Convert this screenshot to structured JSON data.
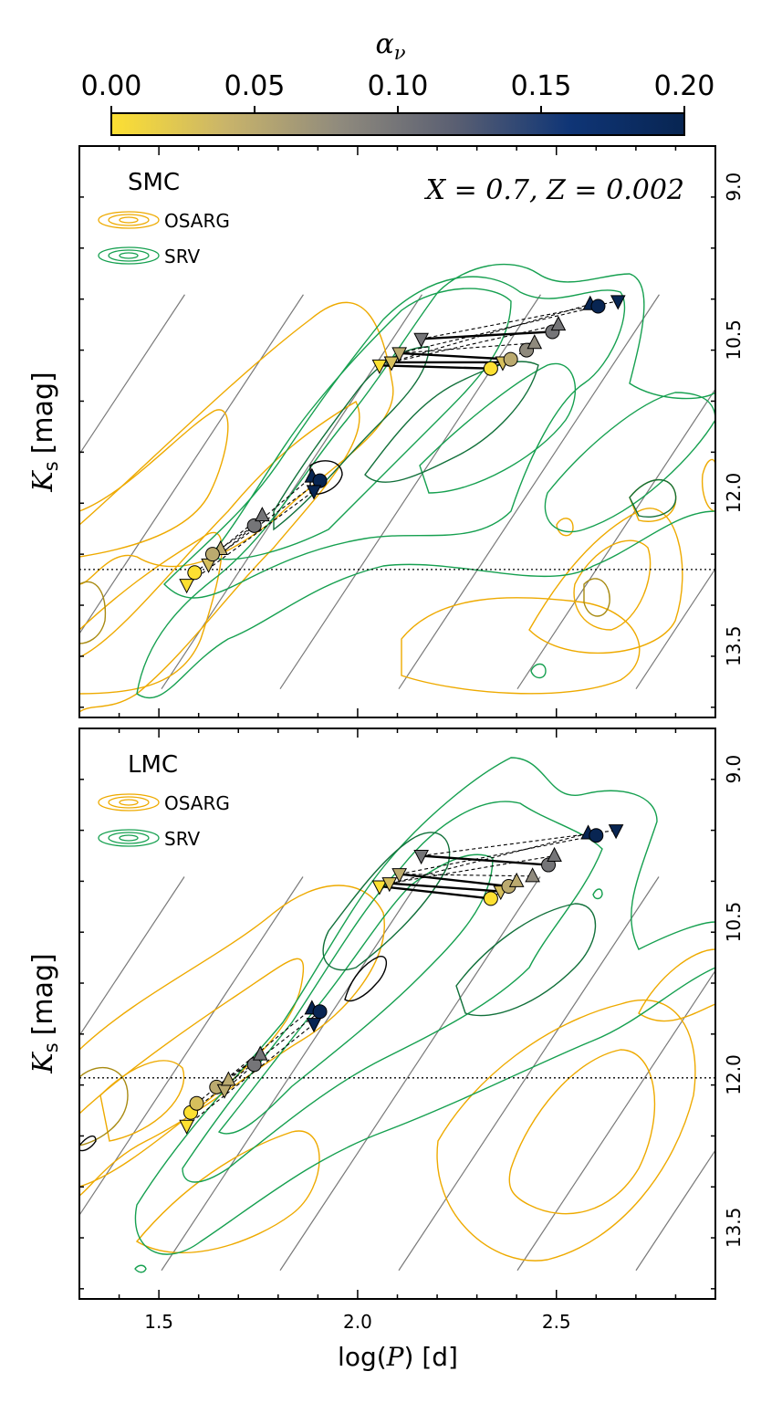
{
  "colorbar": {
    "label": "αν",
    "label_main": "α",
    "label_sub": "ν",
    "ticks": [
      "0.00",
      "0.05",
      "0.10",
      "0.15",
      "0.20"
    ],
    "range": [
      0.0,
      0.2
    ],
    "colors": [
      "#fde032",
      "#c9b46a",
      "#8f8a7d",
      "#5a5f72",
      "#0f3576",
      "#082552"
    ]
  },
  "colors": {
    "osarg": "#eeaa00",
    "osarg_dark": "#a88a10",
    "srv": "#16a050",
    "srv_dark": "#11703a",
    "grid_line": "#7a7a7a"
  },
  "chart_data": [
    {
      "type": "scatter",
      "panel": "top",
      "galaxy_label": "SMC",
      "annotation": "X = 0.7, Z = 0.002",
      "legend": [
        {
          "name": "OSARG",
          "color": "#eeaa00"
        },
        {
          "name": "SRV",
          "color": "#16a050"
        }
      ],
      "legend_placement": "top-left",
      "ylabel_main": "K",
      "ylabel_sub": "s",
      "ylabel_unit": "[mag]",
      "xlim": [
        1.3,
        2.9
      ],
      "ylim": [
        14.2,
        8.6
      ],
      "right_ticks": [
        "9.0",
        "10.5",
        "12.0",
        "13.5"
      ],
      "right_tick_values": [
        9.0,
        10.5,
        12.0,
        13.5
      ],
      "dotted_hline": 12.75,
      "track_groups": [
        {
          "points": [
            {
              "x": 1.57,
              "y": 12.9,
              "alpha": 0.0,
              "m": "v"
            },
            {
              "x": 1.59,
              "y": 12.78,
              "alpha": 0.0,
              "m": "o"
            },
            {
              "x": 1.625,
              "y": 12.7,
              "alpha": 0.03,
              "m": "v"
            },
            {
              "x": 1.655,
              "y": 12.55,
              "alpha": 0.05,
              "m": "^"
            },
            {
              "x": 1.635,
              "y": 12.6,
              "alpha": 0.05,
              "m": "o"
            },
            {
              "x": 1.74,
              "y": 12.32,
              "alpha": 0.1,
              "m": "o"
            },
            {
              "x": 1.76,
              "y": 12.22,
              "alpha": 0.1,
              "m": "^"
            },
            {
              "x": 1.885,
              "y": 11.84,
              "alpha": 0.2,
              "m": "^"
            },
            {
              "x": 1.905,
              "y": 11.88,
              "alpha": 0.2,
              "m": "o"
            },
            {
              "x": 1.89,
              "y": 11.98,
              "alpha": 0.2,
              "m": "v"
            }
          ],
          "segments": [
            [
              0,
              9,
              "dash"
            ],
            [
              1,
              8,
              "dash"
            ],
            [
              2,
              7,
              "dash"
            ],
            [
              3,
              6,
              "dash"
            ],
            [
              4,
              5,
              "dash"
            ]
          ]
        },
        {
          "points": [
            {
              "x": 2.055,
              "y": 10.75,
              "alpha": 0.0,
              "m": "v"
            },
            {
              "x": 2.085,
              "y": 10.72,
              "alpha": 0.03,
              "m": "v"
            },
            {
              "x": 2.105,
              "y": 10.63,
              "alpha": 0.05,
              "m": "v"
            },
            {
              "x": 2.16,
              "y": 10.49,
              "alpha": 0.1,
              "m": "v"
            },
            {
              "x": 2.335,
              "y": 10.78,
              "alpha": 0.0,
              "m": "o"
            },
            {
              "x": 2.365,
              "y": 10.72,
              "alpha": 0.03,
              "m": "v"
            },
            {
              "x": 2.385,
              "y": 10.69,
              "alpha": 0.05,
              "m": "o"
            },
            {
              "x": 2.425,
              "y": 10.6,
              "alpha": 0.08,
              "m": "o"
            },
            {
              "x": 2.445,
              "y": 10.53,
              "alpha": 0.08,
              "m": "^"
            },
            {
              "x": 2.49,
              "y": 10.42,
              "alpha": 0.1,
              "m": "o"
            },
            {
              "x": 2.505,
              "y": 10.35,
              "alpha": 0.1,
              "m": "^"
            },
            {
              "x": 2.585,
              "y": 10.15,
              "alpha": 0.2,
              "m": "^"
            },
            {
              "x": 2.605,
              "y": 10.17,
              "alpha": 0.2,
              "m": "o"
            },
            {
              "x": 2.655,
              "y": 10.12,
              "alpha": 0.2,
              "m": "v"
            }
          ],
          "segments": [
            [
              0,
              4,
              "solid"
            ],
            [
              1,
              5,
              "solid"
            ],
            [
              2,
              6,
              "solid"
            ],
            [
              3,
              9,
              "solid"
            ],
            [
              0,
              11,
              "dash"
            ],
            [
              1,
              10,
              "dash"
            ],
            [
              2,
              8,
              "dash"
            ],
            [
              3,
              13,
              "dash"
            ],
            [
              4,
              7,
              "dash"
            ],
            [
              2,
              12,
              "dash"
            ]
          ]
        }
      ]
    },
    {
      "type": "scatter",
      "panel": "bottom",
      "galaxy_label": "LMC",
      "annotation": "",
      "legend": [
        {
          "name": "OSARG",
          "color": "#eeaa00"
        },
        {
          "name": "SRV",
          "color": "#16a050"
        }
      ],
      "legend_placement": "top-left",
      "xlabel_prefix": "log(",
      "xlabel_var": "P",
      "xlabel_suffix": ") [d]",
      "ylabel_main": "K",
      "ylabel_sub": "s",
      "ylabel_unit": "[mag]",
      "xlim": [
        1.3,
        2.9
      ],
      "ylim": [
        14.2,
        8.6
      ],
      "x_ticks": [
        "1.5",
        "2.0",
        "2.5"
      ],
      "x_tick_values": [
        1.5,
        2.0,
        2.5
      ],
      "right_ticks": [
        "9.0",
        "10.5",
        "12.0",
        "13.5"
      ],
      "right_tick_values": [
        9.0,
        10.5,
        12.0,
        13.5
      ],
      "dotted_hline": 12.03,
      "track_groups": [
        {
          "points": [
            {
              "x": 1.57,
              "y": 12.5,
              "alpha": 0.0,
              "m": "v"
            },
            {
              "x": 1.58,
              "y": 12.37,
              "alpha": 0.0,
              "m": "o"
            },
            {
              "x": 1.595,
              "y": 12.28,
              "alpha": 0.03,
              "m": "o"
            },
            {
              "x": 1.645,
              "y": 12.12,
              "alpha": 0.05,
              "m": "o"
            },
            {
              "x": 1.665,
              "y": 12.15,
              "alpha": 0.05,
              "m": "v"
            },
            {
              "x": 1.675,
              "y": 12.05,
              "alpha": 0.05,
              "m": "^"
            },
            {
              "x": 1.74,
              "y": 11.9,
              "alpha": 0.1,
              "m": "o"
            },
            {
              "x": 1.755,
              "y": 11.8,
              "alpha": 0.1,
              "m": "^"
            },
            {
              "x": 1.885,
              "y": 11.35,
              "alpha": 0.2,
              "m": "^"
            },
            {
              "x": 1.905,
              "y": 11.38,
              "alpha": 0.2,
              "m": "o"
            },
            {
              "x": 1.89,
              "y": 11.5,
              "alpha": 0.2,
              "m": "v"
            }
          ],
          "segments": [
            [
              0,
              10,
              "dash"
            ],
            [
              1,
              9,
              "dash"
            ],
            [
              2,
              8,
              "dash"
            ],
            [
              3,
              7,
              "dash"
            ],
            [
              4,
              6,
              "dash"
            ],
            [
              5,
              7,
              "dash"
            ]
          ]
        },
        {
          "points": [
            {
              "x": 2.055,
              "y": 10.15,
              "alpha": 0.0,
              "m": "v"
            },
            {
              "x": 2.08,
              "y": 10.12,
              "alpha": 0.03,
              "m": "v"
            },
            {
              "x": 2.105,
              "y": 10.03,
              "alpha": 0.05,
              "m": "v"
            },
            {
              "x": 2.16,
              "y": 9.85,
              "alpha": 0.1,
              "m": "v"
            },
            {
              "x": 2.335,
              "y": 10.27,
              "alpha": 0.0,
              "m": "o"
            },
            {
              "x": 2.36,
              "y": 10.2,
              "alpha": 0.03,
              "m": "v"
            },
            {
              "x": 2.38,
              "y": 10.15,
              "alpha": 0.05,
              "m": "o"
            },
            {
              "x": 2.4,
              "y": 10.1,
              "alpha": 0.05,
              "m": "^"
            },
            {
              "x": 2.44,
              "y": 10.05,
              "alpha": 0.08,
              "m": "^"
            },
            {
              "x": 2.48,
              "y": 9.94,
              "alpha": 0.1,
              "m": "o"
            },
            {
              "x": 2.495,
              "y": 9.85,
              "alpha": 0.1,
              "m": "^"
            },
            {
              "x": 2.58,
              "y": 9.63,
              "alpha": 0.2,
              "m": "^"
            },
            {
              "x": 2.6,
              "y": 9.65,
              "alpha": 0.2,
              "m": "o"
            },
            {
              "x": 2.65,
              "y": 9.6,
              "alpha": 0.2,
              "m": "v"
            }
          ],
          "segments": [
            [
              0,
              4,
              "solid"
            ],
            [
              1,
              5,
              "solid"
            ],
            [
              2,
              6,
              "solid"
            ],
            [
              3,
              9,
              "solid"
            ],
            [
              0,
              11,
              "dash"
            ],
            [
              1,
              10,
              "dash"
            ],
            [
              2,
              8,
              "dash"
            ],
            [
              3,
              13,
              "dash"
            ],
            [
              4,
              7,
              "dash"
            ],
            [
              2,
              12,
              "dash"
            ]
          ]
        }
      ]
    }
  ]
}
